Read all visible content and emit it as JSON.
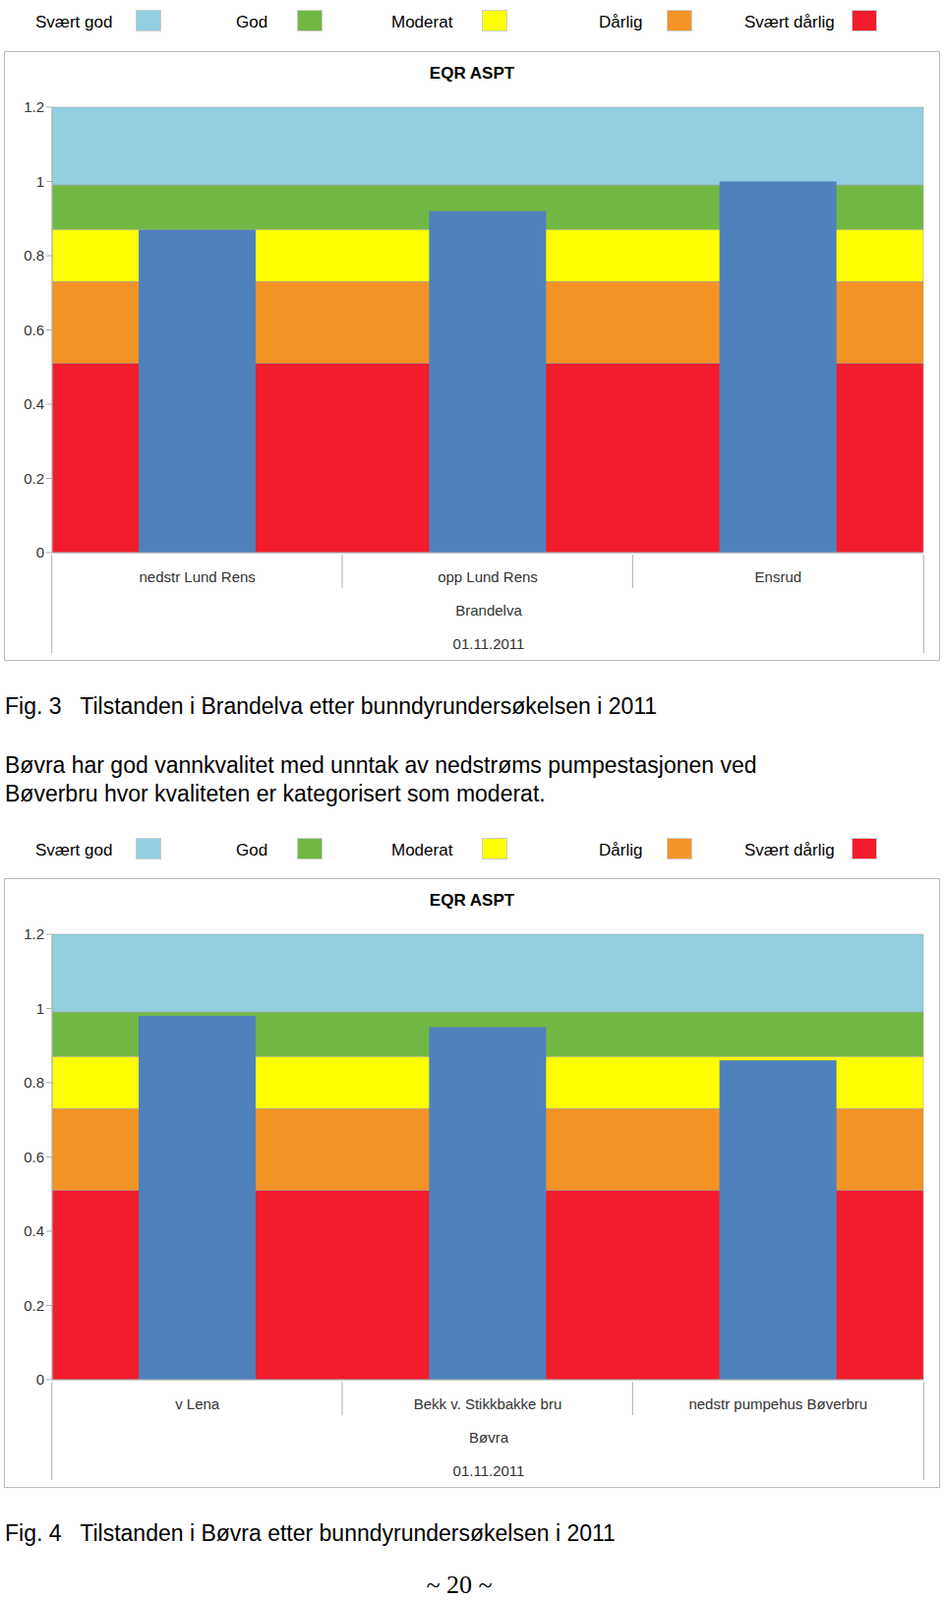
{
  "chart_data": [
    {
      "type": "bar",
      "title": "EQR ASPT",
      "categories": [
        "nedstr Lund Rens",
        "opp Lund Rens",
        "Ensrud"
      ],
      "values": [
        0.87,
        0.92,
        1.0
      ],
      "color": "#4f81bd",
      "group_label": "Brandelva",
      "date": "01.11.2011",
      "ylim": [
        0,
        1.2
      ],
      "yticks": [
        0,
        0.2,
        0.4,
        0.6,
        0.8,
        1,
        1.2
      ],
      "classes": [
        {
          "name": "Svært god",
          "color": "#92cfe0",
          "from": 0.99,
          "to": 1.2
        },
        {
          "name": "God",
          "color": "#70b843",
          "from": 0.87,
          "to": 0.99
        },
        {
          "name": "Moderat",
          "color": "#ffff00",
          "from": 0.73,
          "to": 0.87
        },
        {
          "name": "Dårlig",
          "color": "#f39325",
          "from": 0.51,
          "to": 0.73
        },
        {
          "name": "Svært dårlig",
          "color": "#f21c2c",
          "from": 0,
          "to": 0.51
        }
      ],
      "caption": "Fig. 3   Tilstanden i Brandelva etter bunndyrundersøkelsen i 2011"
    },
    {
      "type": "bar",
      "title": "EQR ASPT",
      "categories": [
        "v Lena",
        "Bekk v. Stikkbakke bru",
        "nedstr pumpehus Bøverbru"
      ],
      "values": [
        0.98,
        0.95,
        0.86
      ],
      "color": "#4f81bd",
      "group_label": "Bøvra",
      "date": "01.11.2011",
      "ylim": [
        0,
        1.2
      ],
      "yticks": [
        0,
        0.2,
        0.4,
        0.6,
        0.8,
        1,
        1.2
      ],
      "classes": [
        {
          "name": "Svært god",
          "color": "#92cfe0",
          "from": 0.99,
          "to": 1.2
        },
        {
          "name": "God",
          "color": "#70b843",
          "from": 0.87,
          "to": 0.99
        },
        {
          "name": "Moderat",
          "color": "#ffff00",
          "from": 0.73,
          "to": 0.87
        },
        {
          "name": "Dårlig",
          "color": "#f39325",
          "from": 0.51,
          "to": 0.73
        },
        {
          "name": "Svært dårlig",
          "color": "#f21c2c",
          "from": 0,
          "to": 0.51
        }
      ],
      "caption": "Fig. 4   Tilstanden i Bøvra etter bunndyrundersøkelsen i 2011"
    }
  ],
  "paragraph": [
    "Bøvra har god vannkvalitet med unntak av nedstrøms pumpestasjonen ved",
    "Bøverbru hvor kvaliteten er kategorisert som moderat."
  ],
  "page_number": "~ 20 ~"
}
